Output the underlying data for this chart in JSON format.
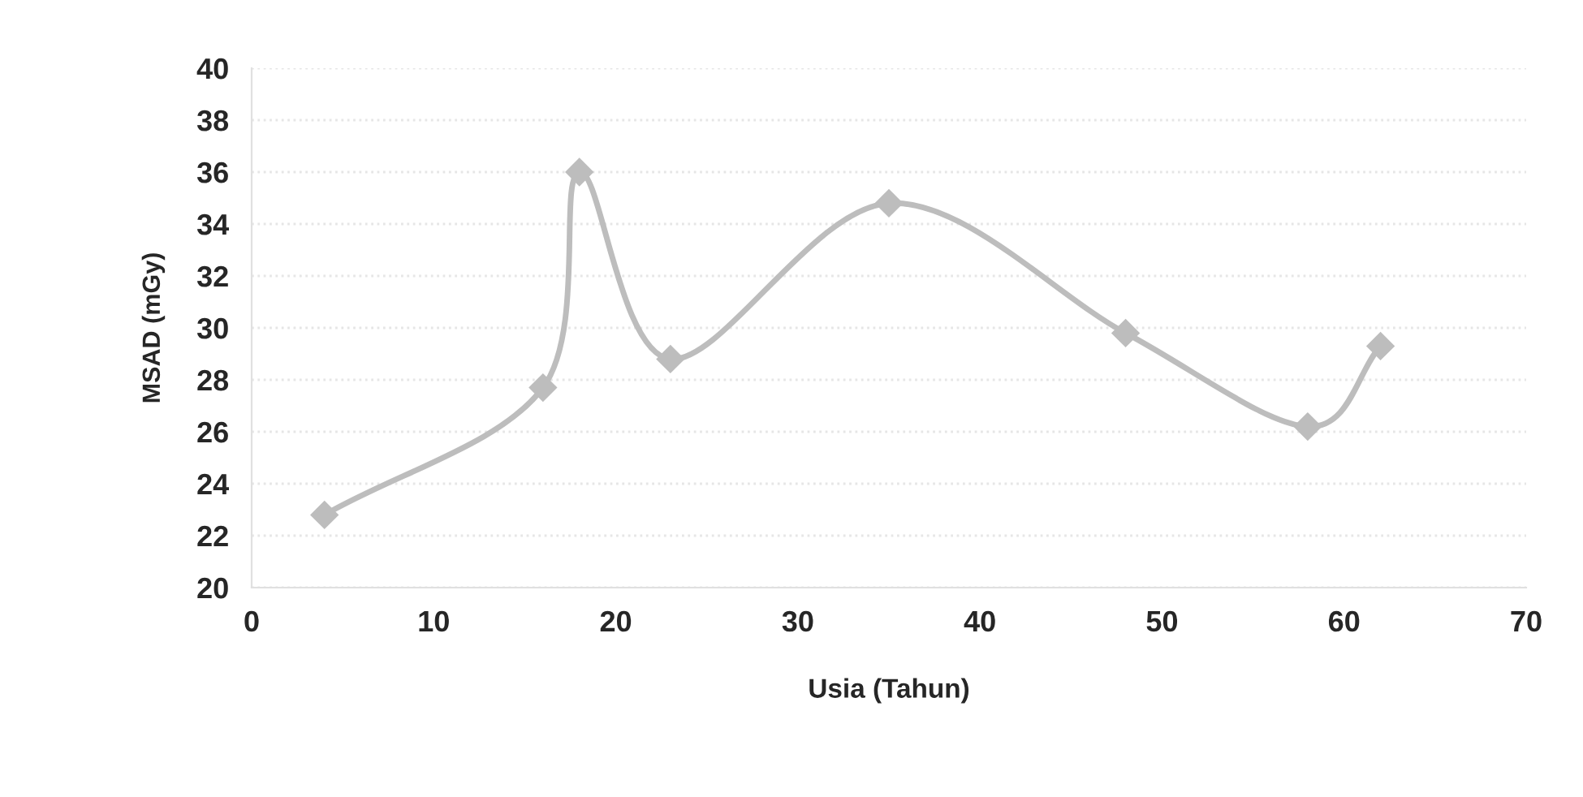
{
  "chart_data": {
    "type": "line",
    "xlabel": "Usia (Tahun)",
    "ylabel": "MSAD (mGy)",
    "x": [
      4,
      16,
      18,
      23,
      35,
      48,
      58,
      62
    ],
    "series": [
      {
        "color": "#bdbdbd",
        "values": [
          22.8,
          27.7,
          36.0,
          28.8,
          34.8,
          29.8,
          26.2,
          29.3
        ]
      }
    ],
    "xlim": [
      0,
      70
    ],
    "xticks": [
      0,
      10,
      20,
      30,
      40,
      50,
      60,
      70
    ],
    "ylim": [
      20,
      40
    ],
    "yticks": [
      20,
      22,
      24,
      26,
      28,
      30,
      32,
      34,
      36,
      38,
      40
    ],
    "grid": "y",
    "marker": "diamond",
    "line_style": "solid",
    "legend": false
  }
}
